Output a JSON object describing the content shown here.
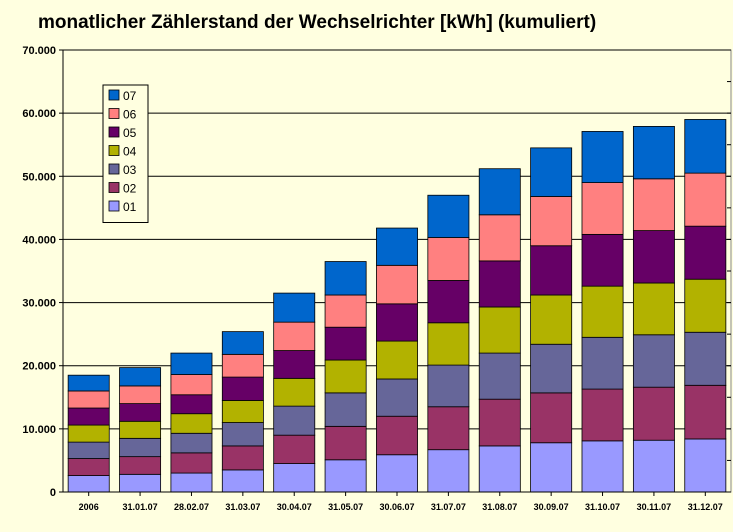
{
  "chart_data": {
    "type": "bar",
    "stacked": true,
    "title": "monatlicher Zählerstand der Wechselrichter [kWh] (kumuliert)",
    "xlabel": "",
    "ylabel": "",
    "ylim": [
      0,
      70000
    ],
    "yticks": [
      0,
      10000,
      20000,
      30000,
      40000,
      50000,
      60000,
      70000
    ],
    "ytick_labels": [
      "0",
      "10.000",
      "20.000",
      "30.000",
      "40.000",
      "50.000",
      "60.000",
      "70.000"
    ],
    "grid": true,
    "legend_position": "top-left",
    "categories": [
      "2006",
      "31.01.07",
      "28.02.07",
      "31.03.07",
      "30.04.07",
      "31.05.07",
      "30.06.07",
      "31.07.07",
      "31.08.07",
      "30.09.07",
      "31.10.07",
      "30.11.07",
      "31.12.07"
    ],
    "series": [
      {
        "name": "01",
        "color": "#9999FF",
        "values": [
          2600,
          2800,
          3000,
          3500,
          4500,
          5100,
          5900,
          6700,
          7300,
          7800,
          8100,
          8200,
          8400
        ]
      },
      {
        "name": "02",
        "color": "#993366",
        "values": [
          2700,
          2800,
          3200,
          3800,
          4500,
          5300,
          6100,
          6800,
          7400,
          7900,
          8200,
          8400,
          8500
        ]
      },
      {
        "name": "03",
        "color": "#666699",
        "values": [
          2600,
          2900,
          3100,
          3700,
          4600,
          5300,
          5900,
          6600,
          7300,
          7700,
          8200,
          8300,
          8400
        ]
      },
      {
        "name": "04",
        "color": "#B2B200",
        "values": [
          2700,
          2700,
          3100,
          3500,
          4400,
          5200,
          6000,
          6700,
          7300,
          7800,
          8100,
          8200,
          8400
        ]
      },
      {
        "name": "05",
        "color": "#660066",
        "values": [
          2700,
          2800,
          3000,
          3700,
          4400,
          5200,
          5900,
          6700,
          7300,
          7800,
          8200,
          8300,
          8400
        ]
      },
      {
        "name": "06",
        "color": "#FF8080",
        "values": [
          2700,
          2800,
          3200,
          3600,
          4500,
          5100,
          6100,
          6800,
          7300,
          7800,
          8200,
          8200,
          8400
        ]
      },
      {
        "name": "07",
        "color": "#0066CC",
        "values": [
          2500,
          2900,
          3400,
          3600,
          4600,
          5300,
          5900,
          6700,
          7300,
          7700,
          8100,
          8300,
          8500
        ]
      }
    ]
  }
}
